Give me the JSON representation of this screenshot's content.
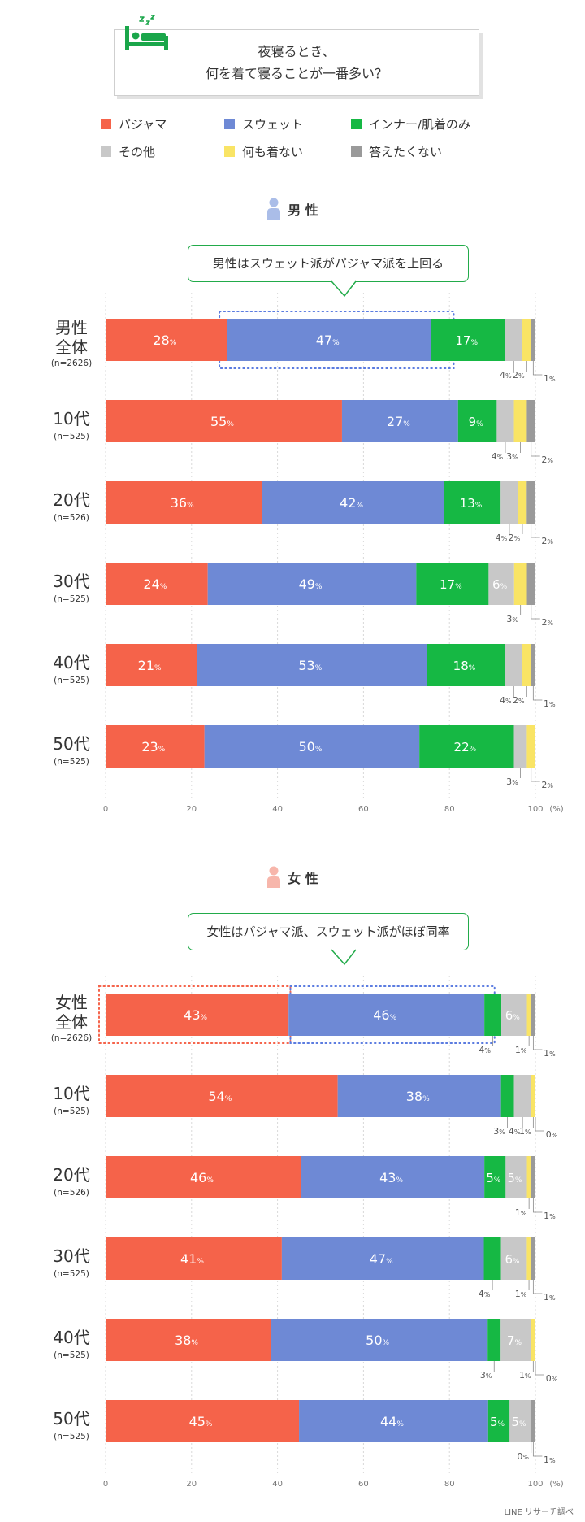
{
  "title": {
    "line1": "夜寝るとき、",
    "line2": "何を着て寝ることが一番多い？"
  },
  "legend": [
    {
      "label": "パジャマ",
      "color": "#f5634a"
    },
    {
      "label": "スウェット",
      "color": "#6e89d5"
    },
    {
      "label": "インナー/肌着のみ",
      "color": "#16b844"
    },
    {
      "label": "その他",
      "color": "#c8c8c8"
    },
    {
      "label": "何も着ない",
      "color": "#f9e465"
    },
    {
      "label": "答えたくない",
      "color": "#9a9a9a"
    }
  ],
  "sections": {
    "male": {
      "label": "男 性",
      "icon": "male-person-icon",
      "icon_color": "#aabde8",
      "callout": "男性はスウェット派がパジャマ派を上回る"
    },
    "female": {
      "label": "女 性",
      "icon": "female-person-icon",
      "icon_color": "#f7b6ab",
      "callout": "女性はパジャマ派、スウェット派がほぼ同率"
    }
  },
  "source": "LINE リサーチ調べ",
  "chart_data": [
    {
      "type": "bar",
      "orientation": "horizontal",
      "stacked": true,
      "unit": "%",
      "xlabel": "(%)",
      "xlim": [
        0,
        100
      ],
      "xticks": [
        0,
        20,
        40,
        60,
        80,
        100
      ],
      "segment_order": [
        "パジャマ",
        "スウェット",
        "インナー/肌着のみ",
        "その他",
        "何も着ない",
        "答えたくない"
      ],
      "rows": [
        {
          "label": "男性全体",
          "n": "(n=2626)",
          "values": [
            28,
            47,
            17,
            4,
            2,
            1
          ],
          "display": [
            "28",
            "47",
            "17",
            "4",
            "2",
            "1"
          ]
        },
        {
          "label": "10代",
          "n": "(n=525)",
          "values": [
            55,
            27,
            9,
            4,
            3,
            2
          ],
          "display": [
            "55",
            "27",
            "9",
            "4",
            "3",
            "2"
          ]
        },
        {
          "label": "20代",
          "n": "(n=526)",
          "values": [
            36,
            42,
            13,
            4,
            2,
            2
          ],
          "display": [
            "36",
            "42",
            "13",
            "4",
            "2",
            "2"
          ]
        },
        {
          "label": "30代",
          "n": "(n=525)",
          "values": [
            24,
            49,
            17,
            6,
            3,
            2
          ],
          "display": [
            "24",
            "49",
            "17",
            "6",
            "3",
            "2"
          ]
        },
        {
          "label": "40代",
          "n": "(n=525)",
          "values": [
            21,
            53,
            18,
            4,
            2,
            1
          ],
          "display": [
            "21",
            "53",
            "18",
            "4",
            "2",
            "1"
          ]
        },
        {
          "label": "50代",
          "n": "(n=525)",
          "values": [
            23,
            50,
            22,
            3,
            2,
            0
          ],
          "display": [
            "23",
            "50",
            "22",
            "3",
            "2",
            ""
          ]
        }
      ]
    },
    {
      "type": "bar",
      "orientation": "horizontal",
      "stacked": true,
      "unit": "%",
      "xlabel": "(%)",
      "xlim": [
        0,
        100
      ],
      "xticks": [
        0,
        20,
        40,
        60,
        80,
        100
      ],
      "segment_order": [
        "パジャマ",
        "スウェット",
        "インナー/肌着のみ",
        "その他",
        "何も着ない",
        "答えたくない"
      ],
      "rows": [
        {
          "label": "女性全体",
          "n": "(n=2626)",
          "values": [
            43,
            46,
            4,
            6,
            1,
            1
          ],
          "display": [
            "43",
            "46",
            "4",
            "6",
            "1",
            "1"
          ]
        },
        {
          "label": "10代",
          "n": "(n=525)",
          "values": [
            54,
            38,
            3,
            4,
            1,
            0
          ],
          "display": [
            "54",
            "38",
            "3",
            "4",
            "1",
            "0"
          ]
        },
        {
          "label": "20代",
          "n": "(n=526)",
          "values": [
            46,
            43,
            5,
            5,
            1,
            1
          ],
          "display": [
            "46",
            "43",
            "5",
            "5",
            "1",
            "1"
          ]
        },
        {
          "label": "30代",
          "n": "(n=525)",
          "values": [
            41,
            47,
            4,
            6,
            1,
            1
          ],
          "display": [
            "41",
            "47",
            "4",
            "6",
            "1",
            "1"
          ]
        },
        {
          "label": "40代",
          "n": "(n=525)",
          "values": [
            38,
            50,
            3,
            7,
            1,
            0
          ],
          "display": [
            "38",
            "50",
            "3",
            "7",
            "1",
            "0"
          ]
        },
        {
          "label": "50代",
          "n": "(n=525)",
          "values": [
            45,
            44,
            5,
            5,
            0,
            1
          ],
          "display": [
            "45",
            "44",
            "5",
            "5",
            "0",
            "1"
          ]
        }
      ]
    }
  ]
}
